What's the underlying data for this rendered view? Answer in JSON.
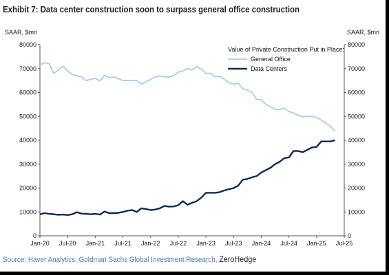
{
  "title": "Exhibit 7: Data center construction soon to surpass general office construction",
  "source": {
    "text": "Source: Haver Analytics, Goldman Sachs Global Investment Research,",
    "brand": "ZeroHedge"
  },
  "colors": {
    "general_office": "#a6cfe8",
    "data_centers": "#0f2a4d",
    "axis": "#555555",
    "title": "#222222",
    "source": "#4e79b8"
  },
  "chart_data": {
    "type": "line",
    "title": "Exhibit 7: Data center construction soon to surpass general office construction",
    "y_unit_left": "SAAR, $mn",
    "y_unit_right": "SAAR, $mn",
    "ylim": [
      0,
      80000
    ],
    "yticks": [
      0,
      10000,
      20000,
      30000,
      40000,
      50000,
      60000,
      70000,
      80000
    ],
    "xticks": [
      "Jan-20",
      "Jul-20",
      "Jan-21",
      "Jul-21",
      "Jan-22",
      "Jul-22",
      "Jan-23",
      "Jul-23",
      "Jan-24",
      "Jul-24",
      "Jan-25",
      "Jul-25"
    ],
    "xlim": [
      0,
      66
    ],
    "grid": false,
    "legend_title": "Value of Private Construction Put in Place:",
    "legend_position": "top-right",
    "series": [
      {
        "name": "General Office",
        "color": "#a6cfe8",
        "x": [
          0,
          1,
          2,
          3,
          4,
          5,
          6,
          7,
          8,
          9,
          10,
          11,
          12,
          13,
          14,
          15,
          16,
          17,
          18,
          19,
          20,
          21,
          22,
          23,
          24,
          25,
          26,
          27,
          28,
          29,
          30,
          31,
          32,
          33,
          34,
          35,
          36,
          37,
          38,
          39,
          40,
          41,
          42,
          43,
          44,
          45,
          46,
          47,
          48,
          49,
          50,
          51,
          52,
          53,
          54,
          55,
          56,
          57,
          58,
          59,
          60,
          61,
          62,
          63,
          64
        ],
        "values": [
          71500,
          72500,
          72000,
          68000,
          69500,
          71000,
          69000,
          67500,
          67000,
          66500,
          65000,
          65500,
          66000,
          64800,
          67200,
          66200,
          66500,
          65800,
          65000,
          65000,
          65000,
          65000,
          63500,
          64500,
          65500,
          66500,
          67000,
          66500,
          66500,
          67000,
          68500,
          69000,
          70000,
          69500,
          70800,
          69800,
          68000,
          68000,
          66500,
          66800,
          65500,
          64000,
          63500,
          63800,
          61500,
          61000,
          60000,
          57000,
          57000,
          55000,
          54000,
          53000,
          52800,
          53500,
          52000,
          51500,
          50500,
          49800,
          50000,
          50000,
          49500,
          48500,
          47000,
          46000,
          43700
        ]
      },
      {
        "name": "Data Centers",
        "color": "#0f2a4d",
        "x": [
          0,
          1,
          2,
          3,
          4,
          5,
          6,
          7,
          8,
          9,
          10,
          11,
          12,
          13,
          14,
          15,
          16,
          17,
          18,
          19,
          20,
          21,
          22,
          23,
          24,
          25,
          26,
          27,
          28,
          29,
          30,
          31,
          32,
          33,
          34,
          35,
          36,
          37,
          38,
          39,
          40,
          41,
          42,
          43,
          44,
          45,
          46,
          47,
          48,
          49,
          50,
          51,
          52,
          53,
          54,
          55,
          56,
          57,
          58,
          59,
          60,
          61,
          62,
          63,
          64
        ],
        "values": [
          9000,
          9500,
          9200,
          9000,
          8800,
          8900,
          8700,
          9000,
          9900,
          9300,
          9200,
          9000,
          9200,
          8900,
          10200,
          9500,
          9500,
          9600,
          10000,
          10500,
          10800,
          10000,
          11500,
          11200,
          10800,
          11000,
          11500,
          12500,
          12200,
          12300,
          12800,
          14500,
          13000,
          13800,
          14500,
          16000,
          18000,
          18000,
          18000,
          18300,
          19000,
          19500,
          20000,
          21000,
          23500,
          23800,
          24500,
          25000,
          26500,
          27500,
          28500,
          30000,
          31000,
          32500,
          32800,
          35500,
          35500,
          35000,
          36000,
          37000,
          37200,
          39500,
          39500,
          39500,
          40000
        ]
      }
    ]
  }
}
